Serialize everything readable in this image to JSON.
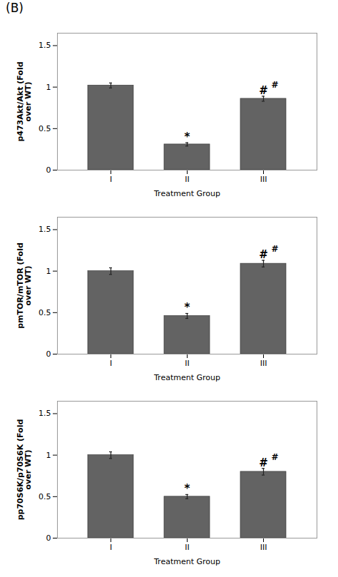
{
  "title": "(B)",
  "chart_data": [
    {
      "type": "bar",
      "xlabel": "Treatment Group",
      "ylabel": "p473Akt/Akt (Fold\nover WT)",
      "categories": [
        "I",
        "II",
        "III"
      ],
      "values": [
        1.02,
        0.31,
        0.86
      ],
      "errors": [
        0.03,
        0.02,
        0.03
      ],
      "annotations": [
        [],
        [
          "*"
        ],
        [
          "#",
          "#"
        ]
      ],
      "color": "#636363",
      "ylim": [
        0,
        1.65
      ],
      "yticks": [
        0,
        0.5,
        1,
        1.5
      ]
    },
    {
      "type": "bar",
      "xlabel": "Treatment Group",
      "ylabel": "pmTOR/mTOR (Fold\nover WT)",
      "categories": [
        "I",
        "II",
        "III"
      ],
      "values": [
        1.0,
        0.46,
        1.09
      ],
      "errors": [
        0.04,
        0.03,
        0.04
      ],
      "annotations": [
        [],
        [
          "*"
        ],
        [
          "#",
          "#"
        ]
      ],
      "color": "#636363",
      "ylim": [
        0,
        1.65
      ],
      "yticks": [
        0,
        0.5,
        1,
        1.5
      ]
    },
    {
      "type": "bar",
      "xlabel": "Treatment Group",
      "ylabel": "pp70S6K/p70S6K (Fold\nover WT)",
      "categories": [
        "I",
        "II",
        "III"
      ],
      "values": [
        1.0,
        0.5,
        0.8
      ],
      "errors": [
        0.04,
        0.025,
        0.04
      ],
      "annotations": [
        [],
        [
          "*"
        ],
        [
          "#",
          "#"
        ]
      ],
      "color": "#636363",
      "ylim": [
        0,
        1.65
      ],
      "yticks": [
        0,
        0.5,
        1,
        1.5
      ]
    }
  ]
}
